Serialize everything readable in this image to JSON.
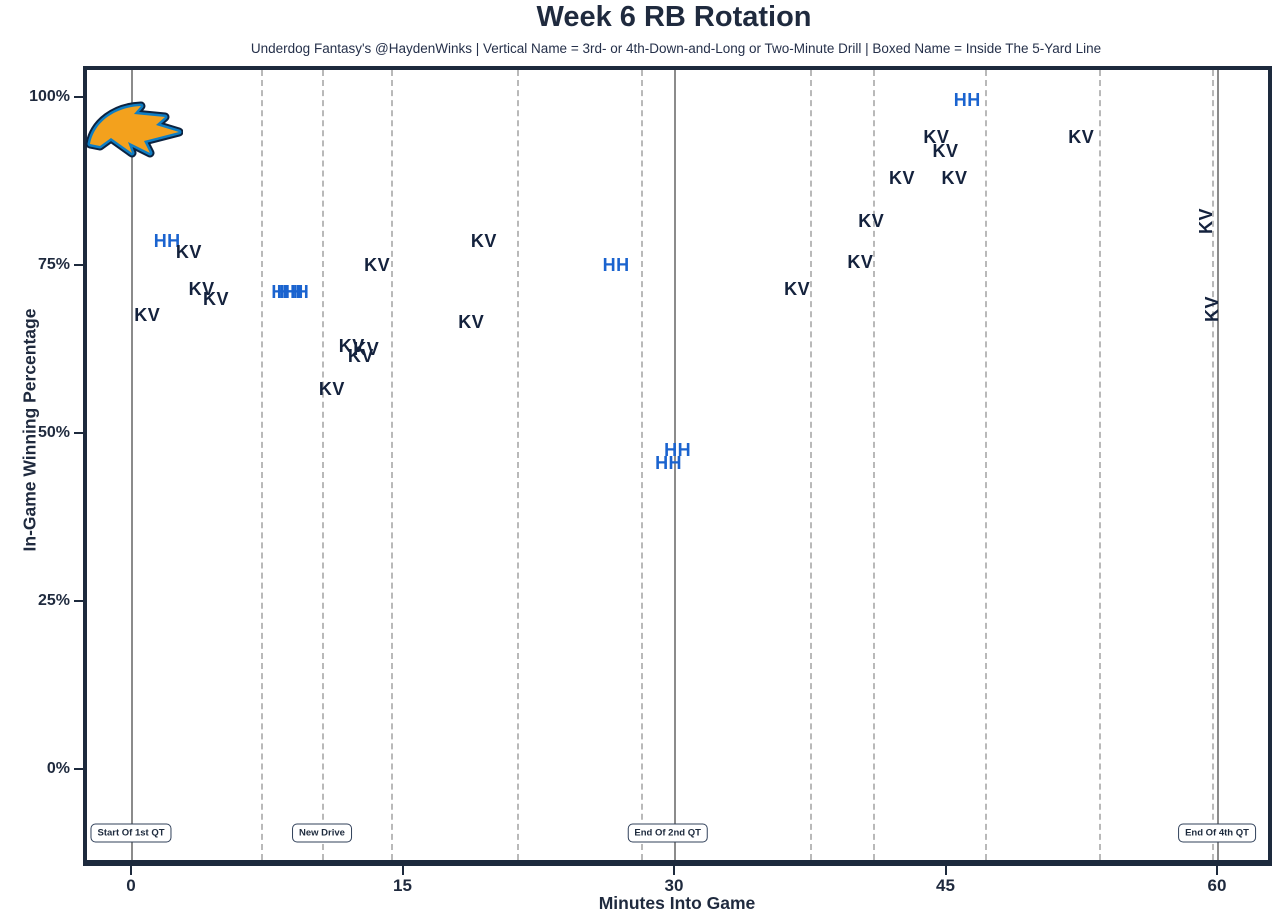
{
  "header": {
    "title": "Week 6 RB Rotation",
    "subtitle": "Underdog Fantasy's @HaydenWinks | Vertical Name = 3rd- or 4th-Down-and-Long or Two-Minute Drill | Boxed Name = Inside The 5-Yard Line"
  },
  "chart_data": {
    "type": "scatter",
    "title": "Week 6 RB Rotation",
    "xlabel": "Minutes Into Game",
    "ylabel": "In-Game Winning Percentage",
    "x_ticks": [
      0,
      15,
      30,
      45,
      60
    ],
    "y_ticks": [
      {
        "value": 100,
        "label": "100%"
      },
      {
        "value": 75,
        "label": "75%"
      },
      {
        "value": 50,
        "label": "50%"
      },
      {
        "value": 25,
        "label": "25%"
      },
      {
        "value": 0,
        "label": "0%"
      }
    ],
    "xlim": [
      -2.5,
      63
    ],
    "ylim": [
      -13,
      104
    ],
    "grid": {
      "solid_minutes": [
        0,
        30,
        60
      ],
      "dashed_minutes": [
        7.2,
        10.55,
        14.35,
        21.3,
        28.2,
        37.5,
        41.0,
        47.2,
        53.5,
        59.7
      ]
    },
    "colors": {
      "KV": "#14223d",
      "HH": "#1a63cf",
      "axis": "#1f2a3e",
      "grid_dashed": "#b9b9b9",
      "grid_solid": "#8b8b8b"
    },
    "annotations": [
      {
        "label": "Start Of 1st QT",
        "minute": 0
      },
      {
        "label": "New Drive",
        "minute": 10.55
      },
      {
        "label": "End Of 2nd QT",
        "minute": 29.65
      },
      {
        "label": "End Of 4th QT",
        "minute": 60
      }
    ],
    "points": [
      {
        "minute": 0.9,
        "win_pct": 67.5,
        "label": "KV"
      },
      {
        "minute": 2.0,
        "win_pct": 78.5,
        "label": "HH"
      },
      {
        "minute": 3.2,
        "win_pct": 77.0,
        "label": "KV"
      },
      {
        "minute": 3.9,
        "win_pct": 71.5,
        "label": "KV"
      },
      {
        "minute": 4.7,
        "win_pct": 70.0,
        "label": "KV"
      },
      {
        "minute": 8.5,
        "win_pct": 71.0,
        "label": "HH"
      },
      {
        "minute": 8.8,
        "win_pct": 71.0,
        "label": "HH"
      },
      {
        "minute": 9.1,
        "win_pct": 71.0,
        "label": "HH"
      },
      {
        "minute": 11.1,
        "win_pct": 56.5,
        "label": "KV"
      },
      {
        "minute": 12.2,
        "win_pct": 63.0,
        "label": "KV"
      },
      {
        "minute": 12.7,
        "win_pct": 61.5,
        "label": "KV"
      },
      {
        "minute": 13.0,
        "win_pct": 62.5,
        "label": "KV"
      },
      {
        "minute": 13.6,
        "win_pct": 75.0,
        "label": "KV"
      },
      {
        "minute": 18.8,
        "win_pct": 66.5,
        "label": "KV"
      },
      {
        "minute": 19.5,
        "win_pct": 78.5,
        "label": "KV"
      },
      {
        "minute": 26.8,
        "win_pct": 75.0,
        "label": "HH"
      },
      {
        "minute": 29.7,
        "win_pct": 45.5,
        "label": "HH"
      },
      {
        "minute": 30.2,
        "win_pct": 47.5,
        "label": "HH"
      },
      {
        "minute": 36.8,
        "win_pct": 71.5,
        "label": "KV"
      },
      {
        "minute": 40.3,
        "win_pct": 75.5,
        "label": "KV"
      },
      {
        "minute": 40.9,
        "win_pct": 81.5,
        "label": "KV"
      },
      {
        "minute": 42.6,
        "win_pct": 88.0,
        "label": "KV"
      },
      {
        "minute": 44.5,
        "win_pct": 94.0,
        "label": "KV"
      },
      {
        "minute": 45.0,
        "win_pct": 92.0,
        "label": "KV"
      },
      {
        "minute": 45.5,
        "win_pct": 88.0,
        "label": "KV"
      },
      {
        "minute": 46.2,
        "win_pct": 99.5,
        "label": "HH"
      },
      {
        "minute": 52.5,
        "win_pct": 94.0,
        "label": "KV"
      },
      {
        "minute": 59.4,
        "win_pct": 81.5,
        "label": "KV",
        "vertical": true
      },
      {
        "minute": 59.7,
        "win_pct": 68.5,
        "label": "KV",
        "vertical": true
      }
    ]
  },
  "logo": {
    "name": "Los Angeles Chargers bolt"
  }
}
